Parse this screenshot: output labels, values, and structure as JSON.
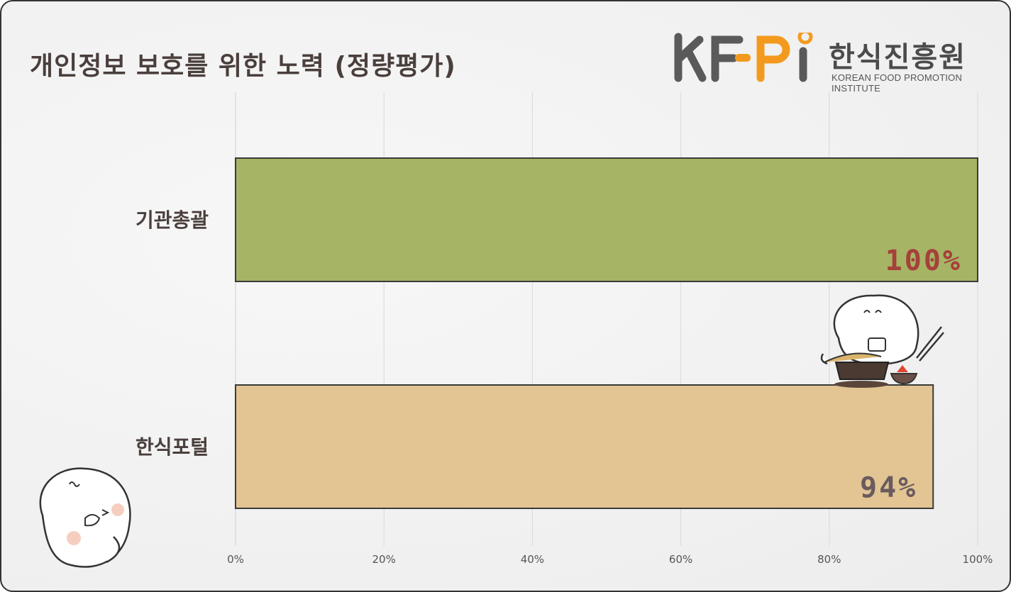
{
  "title": "개인정보 보호를 위한 노력 (정량평가)",
  "logo": {
    "letters": "KFPI",
    "korean": "한식진흥원",
    "english": "KOREAN FOOD PROMOTION INSTITUTE"
  },
  "chart_data": {
    "type": "bar",
    "orientation": "horizontal",
    "categories": [
      "기관총괄",
      "한식포털"
    ],
    "values": [
      100,
      94
    ],
    "value_labels": [
      "100%",
      "94%"
    ],
    "bar_colors": [
      "#a6b465",
      "#e2c593"
    ],
    "value_label_colors": [
      "#a6403a",
      "#6b5b5e"
    ],
    "xlim": [
      0,
      100
    ],
    "xticks": [
      "0%",
      "20%",
      "40%",
      "60%",
      "80%",
      "100%"
    ],
    "grid": true,
    "legend": "none"
  }
}
